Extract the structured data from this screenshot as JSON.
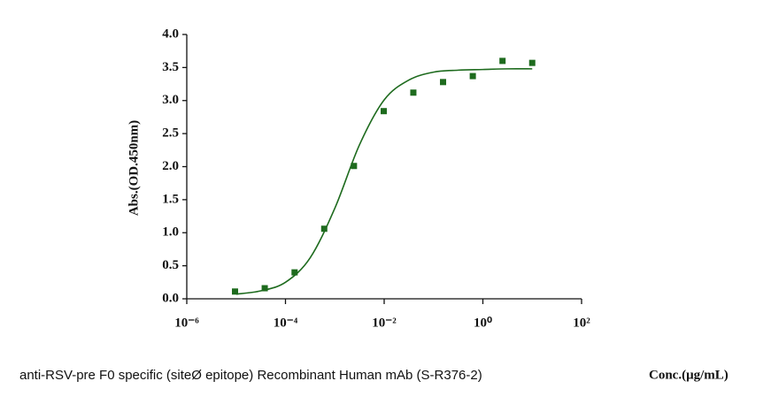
{
  "chart_data": {
    "type": "scatter",
    "title": "anti-RSV-pre F0 specific (siteØ epitope) Recombinant Human mAb (S-R376-2)",
    "x_label": "Conc.(μg/mL)",
    "y_label": "Abs.(OD.450nm)",
    "x_scale": "log",
    "color": "#1e6b1e",
    "x": [
      9.5e-06,
      3.8e-05,
      0.000153,
      0.00061,
      0.00244,
      0.0098,
      0.039,
      0.156,
      0.625,
      2.5,
      10
    ],
    "values": [
      0.11,
      0.16,
      0.4,
      1.06,
      2.01,
      2.84,
      3.12,
      3.28,
      3.37,
      3.6,
      3.57
    ],
    "fit": {
      "x": [
        1e-05,
        3.16e-05,
        0.0001,
        0.000316,
        0.001,
        0.00316,
        0.01,
        0.0316,
        0.1,
        0.316,
        1,
        3.16,
        10
      ],
      "values": [
        0.07,
        0.12,
        0.25,
        0.62,
        1.37,
        2.33,
        3.01,
        3.31,
        3.43,
        3.46,
        3.47,
        3.48,
        3.48
      ]
    },
    "xlim": [
      1e-06,
      100
    ],
    "xticks": [
      {
        "value": 1e-06,
        "label": "10⁻⁶"
      },
      {
        "value": 0.0001,
        "label": "10⁻⁴"
      },
      {
        "value": 0.01,
        "label": "10⁻²"
      },
      {
        "value": 1,
        "label": "10⁰"
      },
      {
        "value": 100,
        "label": "10²"
      }
    ],
    "ylim": [
      0,
      4
    ],
    "yticks": [
      {
        "value": 0,
        "label": "0.0"
      },
      0.5,
      {
        "value": 1,
        "label": "1.0"
      },
      1.5,
      {
        "value": 2,
        "label": "2.0"
      },
      2.5,
      {
        "value": 3,
        "label": "3.0"
      },
      3.5,
      {
        "value": 4,
        "label": "4.0"
      }
    ]
  }
}
